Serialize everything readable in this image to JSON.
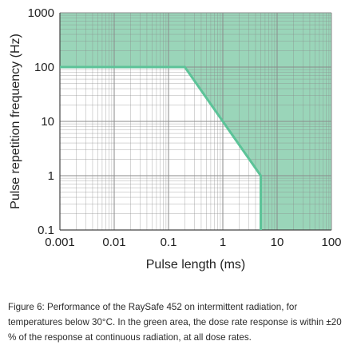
{
  "chart_data": {
    "type": "area",
    "xlabel": "Pulse length (ms)",
    "ylabel": "Pulse repetition frequency (Hz)",
    "x_scale": "log",
    "y_scale": "log",
    "xlim": [
      0.001,
      100
    ],
    "ylim": [
      0.1,
      1000
    ],
    "x_tick_labels": [
      "0.001",
      "0.01",
      "0.1",
      "1",
      "10",
      "100"
    ],
    "x_ticks": [
      0.001,
      0.01,
      0.1,
      1,
      10,
      100
    ],
    "y_tick_labels": [
      "0.1",
      "1",
      "10",
      "100",
      "1000"
    ],
    "y_ticks": [
      0.1,
      1,
      10,
      100,
      1000
    ],
    "grid": true,
    "boundary": {
      "x": [
        0.001,
        0.2,
        1,
        5,
        5
      ],
      "y": [
        100,
        100,
        10,
        1,
        0.1
      ]
    },
    "fill_region": "above-and-right-of-boundary",
    "colors": {
      "fill": "#8fd0b1",
      "line": "#5cc398",
      "grid": "#8a8a8a"
    }
  },
  "caption": "Figure 6: Performance of the RaySafe 452 on intermittent radiation, for temperatures below 30°C. In the green area, the dose rate response is within ±20 % of the response at continuous radiation, at all dose rates."
}
